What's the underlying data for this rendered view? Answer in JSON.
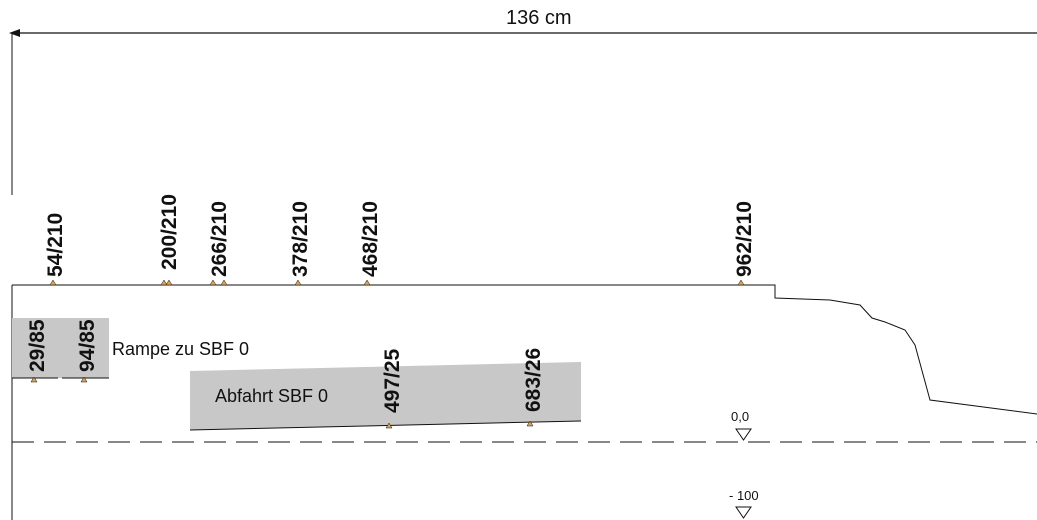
{
  "dimension": {
    "label": "136 cm"
  },
  "markers_top": [
    {
      "label": "54/210"
    },
    {
      "label": "200/210"
    },
    {
      "label": "266/210"
    },
    {
      "label": "378/210"
    },
    {
      "label": "468/210"
    },
    {
      "label": "962/210"
    }
  ],
  "ramp": {
    "name": "Rampe zu SBF 0",
    "markers": [
      {
        "label": "29/85"
      },
      {
        "label": "94/85"
      }
    ]
  },
  "exit": {
    "name": "Abfahrt SBF 0",
    "markers": [
      {
        "label": "497/25"
      },
      {
        "label": "683/26"
      }
    ]
  },
  "levels": [
    {
      "label": "0,0"
    },
    {
      "label": "- 100"
    }
  ],
  "colors": {
    "line": "#111111",
    "fill": "#c8c8c8",
    "marker": "#e0a050"
  }
}
